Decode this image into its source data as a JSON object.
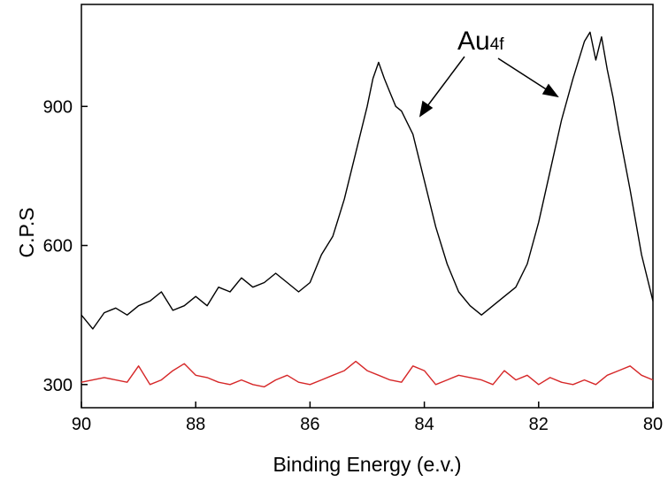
{
  "chart_data": {
    "type": "line",
    "title": "",
    "xlabel": "Binding Energy (e.v.)",
    "ylabel": "C.P.S",
    "xlim": [
      90,
      80
    ],
    "ylim": [
      250,
      1120
    ],
    "x_reversed": true,
    "xticks": [
      90,
      88,
      86,
      84,
      82,
      80
    ],
    "yticks": [
      300,
      600,
      900
    ],
    "grid": false,
    "legend": "none",
    "annotation": {
      "base": "Au",
      "sub": "4f"
    },
    "series": [
      {
        "color": "#000000",
        "x": [
          90.0,
          89.8,
          89.6,
          89.4,
          89.2,
          89.0,
          88.8,
          88.6,
          88.4,
          88.2,
          88.0,
          87.8,
          87.6,
          87.4,
          87.2,
          87.0,
          86.8,
          86.6,
          86.4,
          86.2,
          86.0,
          85.8,
          85.6,
          85.4,
          85.2,
          85.0,
          84.9,
          84.8,
          84.7,
          84.6,
          84.5,
          84.4,
          84.2,
          84.0,
          83.8,
          83.6,
          83.4,
          83.2,
          83.0,
          82.8,
          82.6,
          82.4,
          82.2,
          82.0,
          81.8,
          81.6,
          81.4,
          81.2,
          81.1,
          81.0,
          80.9,
          80.8,
          80.7,
          80.6,
          80.4,
          80.2,
          80.0
        ],
        "values": [
          450,
          420,
          455,
          465,
          450,
          470,
          480,
          500,
          460,
          470,
          490,
          470,
          510,
          500,
          530,
          510,
          520,
          540,
          520,
          500,
          520,
          580,
          620,
          700,
          800,
          900,
          960,
          995,
          960,
          930,
          900,
          890,
          840,
          740,
          640,
          560,
          500,
          470,
          450,
          470,
          490,
          510,
          560,
          650,
          760,
          870,
          960,
          1040,
          1060,
          1000,
          1050,
          980,
          920,
          850,
          720,
          580,
          480
        ]
      },
      {
        "color": "#d62728",
        "x": [
          90.0,
          89.6,
          89.2,
          89.0,
          88.8,
          88.6,
          88.4,
          88.2,
          88.0,
          87.8,
          87.6,
          87.4,
          87.2,
          87.0,
          86.8,
          86.6,
          86.4,
          86.2,
          86.0,
          85.8,
          85.6,
          85.4,
          85.2,
          85.0,
          84.8,
          84.6,
          84.4,
          84.2,
          84.0,
          83.8,
          83.6,
          83.4,
          83.2,
          83.0,
          82.8,
          82.6,
          82.4,
          82.2,
          82.0,
          81.8,
          81.6,
          81.4,
          81.2,
          81.0,
          80.8,
          80.6,
          80.4,
          80.2,
          80.0
        ],
        "values": [
          305,
          315,
          305,
          340,
          300,
          310,
          330,
          345,
          320,
          315,
          305,
          300,
          310,
          300,
          295,
          310,
          320,
          305,
          300,
          310,
          320,
          330,
          350,
          330,
          320,
          310,
          305,
          340,
          330,
          300,
          310,
          320,
          315,
          310,
          300,
          330,
          310,
          320,
          300,
          315,
          305,
          300,
          310,
          300,
          320,
          330,
          340,
          320,
          310
        ]
      }
    ]
  }
}
